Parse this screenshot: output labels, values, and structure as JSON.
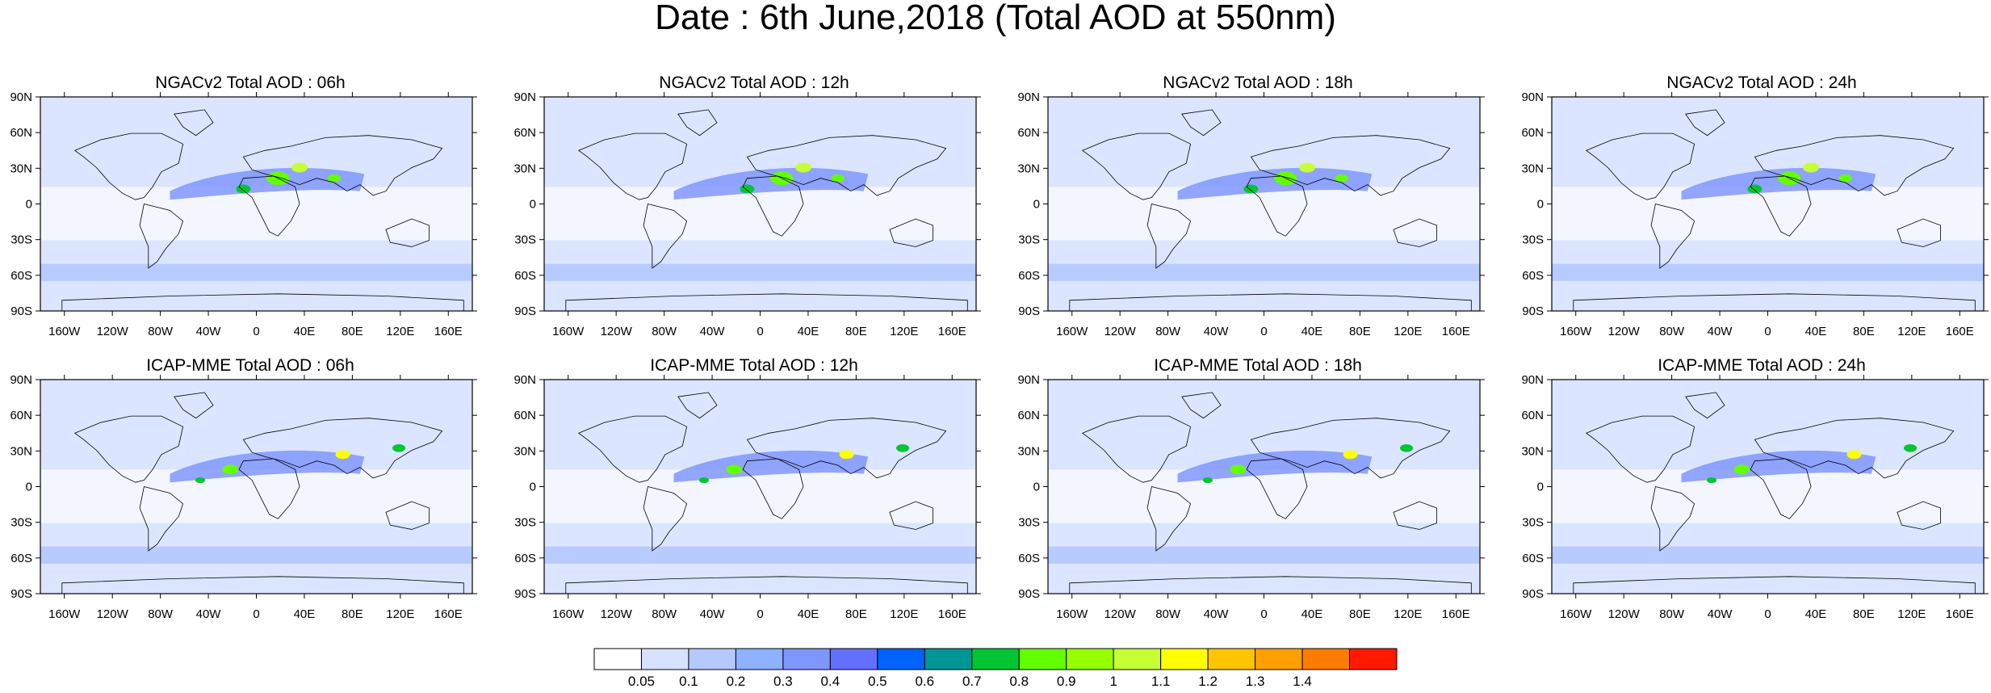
{
  "title": "Date : 6th June,2018 (Total AOD at 550nm)",
  "panels": [
    {
      "title": "NGACv2 Total AOD : 06h",
      "model": "NGACv2",
      "hour": "06h"
    },
    {
      "title": "NGACv2 Total AOD : 12h",
      "model": "NGACv2",
      "hour": "12h"
    },
    {
      "title": "NGACv2 Total AOD : 18h",
      "model": "NGACv2",
      "hour": "18h"
    },
    {
      "title": "NGACv2 Total AOD : 24h",
      "model": "NGACv2",
      "hour": "24h"
    },
    {
      "title": "ICAP-MME Total AOD : 06h",
      "model": "ICAP-MME",
      "hour": "06h"
    },
    {
      "title": "ICAP-MME Total AOD : 12h",
      "model": "ICAP-MME",
      "hour": "12h"
    },
    {
      "title": "ICAP-MME Total AOD : 18h",
      "model": "ICAP-MME",
      "hour": "18h"
    },
    {
      "title": "ICAP-MME Total AOD : 24h",
      "model": "ICAP-MME",
      "hour": "24h"
    }
  ],
  "lat_ticks": [
    "90N",
    "60N",
    "30N",
    "0",
    "30S",
    "60S",
    "90S"
  ],
  "lon_ticks": [
    "160W",
    "120W",
    "80W",
    "40W",
    "0",
    "40E",
    "80E",
    "120E",
    "160E"
  ],
  "colorbar": {
    "labels": [
      "0.05",
      "0.1",
      "0.2",
      "0.3",
      "0.4",
      "0.5",
      "0.6",
      "0.7",
      "0.8",
      "0.9",
      "1",
      "1.1",
      "1.2",
      "1.3",
      "1.4"
    ],
    "colors": [
      "#ffffff",
      "#d6e2ff",
      "#b5c9ff",
      "#8eb2ff",
      "#7f96ff",
      "#6370ff",
      "#0063ff",
      "#009696",
      "#00c633",
      "#63ff00",
      "#96ff00",
      "#c6ff33",
      "#ffff00",
      "#ffc600",
      "#ffa000",
      "#ff7c00",
      "#ff1900"
    ]
  }
}
